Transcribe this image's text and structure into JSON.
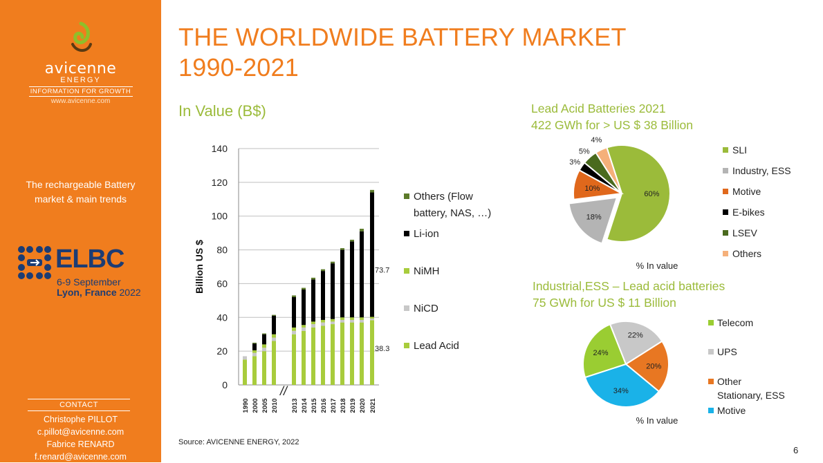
{
  "sidebar": {
    "logo_name": "avicenne",
    "logo_sub": "ENERGY",
    "logo_tag": "INFORMATION FOR GROWTH",
    "logo_url": "www.avicenne.com",
    "tagline_1": "The rechargeable Battery",
    "tagline_2": "market & main trends",
    "elbc_title": "ELBC",
    "elbc_date": "6-9 September",
    "elbc_city_bold": "Lyon, France",
    "elbc_year": "2022",
    "contact_heading": "CONTACT",
    "contact_lines": [
      "Christophe PILLOT",
      "c.pillot@avicenne.com",
      "Fabrice RENARD",
      "f.renard@avicenne.com"
    ]
  },
  "slide": {
    "title_1": "THE WORLDWIDE BATTERY MARKET",
    "title_2": "1990-2021",
    "subtitle": "In Value (B$)",
    "source": "Source: AVICENNE ENERGY, 2022",
    "page_number": "6"
  },
  "colors": {
    "orange": "#f07d1e",
    "green_text": "#9bbb3a",
    "lead_acid": "#a8cc3c",
    "nicd": "#c8c8c8",
    "nimh": "#a8cc3c",
    "li_ion": "#000000",
    "others": "#5c7a2a"
  },
  "chart_data": [
    {
      "type": "bar",
      "stacked": true,
      "title": "In Value (B$)",
      "ylabel": "Billion US $",
      "ylim": [
        0,
        140
      ],
      "yticks": [
        0,
        20,
        40,
        60,
        80,
        100,
        120,
        140
      ],
      "categories": [
        "1990",
        "2000",
        "2005",
        "2010",
        "2013",
        "2014",
        "2015",
        "2016",
        "2017",
        "2018",
        "2019",
        "2020",
        "2021"
      ],
      "axis_break_label": "//",
      "series": [
        {
          "name": "Lead Acid",
          "color": "#a8cc3c",
          "values": [
            15,
            17,
            20,
            26,
            30,
            32,
            34,
            35,
            36,
            37,
            37,
            37,
            38.3
          ]
        },
        {
          "name": "NiCD",
          "color": "#c8c8c8",
          "values": [
            2,
            2,
            2,
            2,
            2,
            2,
            2,
            2,
            1.5,
            1.5,
            1.5,
            1.5,
            1
          ]
        },
        {
          "name": "NiMH",
          "color": "#a8cc3c",
          "values": [
            0,
            1.5,
            2,
            2,
            2,
            1.5,
            1.5,
            1.5,
            1.5,
            1.5,
            1.5,
            1.5,
            1
          ]
        },
        {
          "name": "Li-ion",
          "color": "#000000",
          "values": [
            0,
            4,
            6,
            11,
            18,
            21,
            25,
            29,
            33,
            40,
            45,
            51,
            73.7
          ]
        },
        {
          "name": "Others (Flow battery, NAS, …)",
          "color": "#5c7a2a",
          "values": [
            0,
            0.5,
            0.5,
            0.5,
            1,
            1,
            1,
            1,
            1,
            1,
            1,
            1.5,
            1.5
          ]
        }
      ],
      "legend": [
        {
          "label_1": "Others (Flow",
          "label_2": "battery, NAS, …)",
          "color": "#5c7a2a"
        },
        {
          "label_1": "Li-ion",
          "color": "#000000"
        },
        {
          "label_1": "NiMH",
          "color": "#a8cc3c"
        },
        {
          "label_1": "NiCD",
          "color": "#c8c8c8"
        },
        {
          "label_1": "Lead Acid",
          "color": "#a8cc3c"
        }
      ],
      "annotations": [
        {
          "text": "73.7",
          "category": "2021",
          "series": "Li-ion"
        },
        {
          "text": "38.3",
          "category": "2021",
          "series": "Lead Acid"
        }
      ]
    },
    {
      "type": "pie",
      "title_1": "Lead Acid Batteries 2021",
      "title_2": "422 GWh for > US $ 38 Billion",
      "caption": "% In value",
      "slices": [
        {
          "name": "SLI",
          "value": 60,
          "label": "60%",
          "color": "#9bbb3a"
        },
        {
          "name": "Industry, ESS",
          "value": 18,
          "label": "18%",
          "color": "#b4b4b4",
          "exploded": true
        },
        {
          "name": "Motive",
          "value": 10,
          "label": "10%",
          "color": "#e0681c"
        },
        {
          "name": "E-bikes",
          "value": 3,
          "label": "3%",
          "color": "#000000"
        },
        {
          "name": "LSEV",
          "value": 5,
          "label": "5%",
          "color": "#4a6a1e"
        },
        {
          "name": "Others",
          "value": 4,
          "label": "4%",
          "color": "#f5b07a"
        }
      ]
    },
    {
      "type": "pie",
      "title_1": "Industrial,ESS  – Lead acid batteries",
      "title_2": "75 GWh for US $ 11 Billion",
      "caption": "% In value",
      "slices": [
        {
          "name": "Telecom",
          "value": 24,
          "label": "24%",
          "color": "#9acd32"
        },
        {
          "name": "UPS",
          "value": 22,
          "label": "22%",
          "color": "#c8c8c8"
        },
        {
          "name": "Other Stationary, ESS",
          "value": 20,
          "label": "20%",
          "color": "#e87722"
        },
        {
          "name": "Motive",
          "value": 34,
          "label": "34%",
          "color": "#1ab2e8"
        }
      ],
      "legend": [
        {
          "label_1": "Telecom",
          "color": "#9acd32"
        },
        {
          "label_1": "UPS",
          "color": "#c8c8c8"
        },
        {
          "label_1": "Other",
          "label_2": "Stationary, ESS",
          "color": "#e87722"
        },
        {
          "label_1": "Motive",
          "color": "#1ab2e8"
        }
      ]
    }
  ]
}
